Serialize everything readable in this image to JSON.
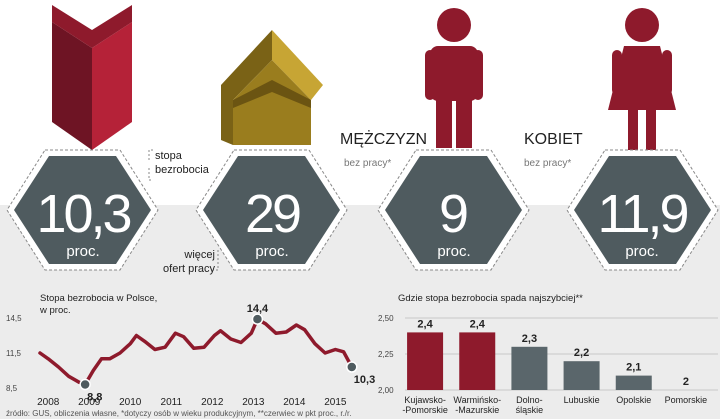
{
  "colors": {
    "maroon": "#8e1a2c",
    "maroon_light": "#b52238",
    "gold": "#9a7d1e",
    "gold_light": "#c7a534",
    "hex": "#4f5b5f",
    "bar_red": "#8e1a2c",
    "bar_gray": "#5a666b",
    "panel_bg": "#ececec"
  },
  "infographic": {
    "stat1": {
      "value": "10,3",
      "unit": "proc.",
      "note_line1": "stopa",
      "note_line2": "bezrobocia",
      "icon": "down-arrow-icon"
    },
    "stat2": {
      "value": "29",
      "unit": "proc.",
      "note_line1": "więcej",
      "note_line2": "ofert pracy",
      "icon": "up-arrow-icon"
    },
    "stat3": {
      "value": "9",
      "unit": "proc.",
      "heading": "MĘŻCZYZN",
      "note": "bez pracy*",
      "icon": "man-icon"
    },
    "stat4": {
      "value": "11,9",
      "unit": "proc.",
      "heading": "KOBIET",
      "note": "bez pracy*",
      "icon": "woman-icon"
    },
    "footnote": "źródło: GUS, obliczenia własne, *dotyczy osób w wieku produkcyjnym, **czerwiec w pkt proc., r./r."
  },
  "chart_data": [
    {
      "type": "line",
      "title": "Stopa bezrobocia w Polsce,",
      "subtitle": "w proc.",
      "x_ticks": [
        "2008",
        "2009",
        "2010",
        "2011",
        "2012",
        "2013",
        "2014",
        "2015"
      ],
      "y_ticks": [
        "14,5",
        "11,5",
        "8,5"
      ],
      "ylim": [
        8.5,
        14.5
      ],
      "xlim": [
        2007.8,
        2015.6
      ],
      "series": [
        {
          "values": [
            [
              2007.8,
              11.5
            ],
            [
              2008.0,
              11.0
            ],
            [
              2008.25,
              10.3
            ],
            [
              2008.5,
              9.5
            ],
            [
              2008.75,
              9.0
            ],
            [
              2008.9,
              8.8
            ],
            [
              2009.1,
              10.0
            ],
            [
              2009.3,
              11.0
            ],
            [
              2009.5,
              11.0
            ],
            [
              2009.75,
              11.5
            ],
            [
              2010.0,
              12.3
            ],
            [
              2010.15,
              13.0
            ],
            [
              2010.35,
              12.5
            ],
            [
              2010.6,
              11.8
            ],
            [
              2010.85,
              12.0
            ],
            [
              2011.1,
              13.2
            ],
            [
              2011.3,
              12.9
            ],
            [
              2011.55,
              11.9
            ],
            [
              2011.8,
              12.0
            ],
            [
              2012.05,
              13.0
            ],
            [
              2012.2,
              13.4
            ],
            [
              2012.45,
              12.7
            ],
            [
              2012.7,
              12.4
            ],
            [
              2012.95,
              13.2
            ],
            [
              2013.1,
              14.4
            ],
            [
              2013.3,
              14.0
            ],
            [
              2013.55,
              13.2
            ],
            [
              2013.8,
              13.3
            ],
            [
              2014.05,
              13.9
            ],
            [
              2014.25,
              13.5
            ],
            [
              2014.5,
              12.3
            ],
            [
              2014.75,
              11.5
            ],
            [
              2015.0,
              11.8
            ],
            [
              2015.2,
              11.6
            ],
            [
              2015.4,
              10.3
            ]
          ]
        }
      ],
      "annotations": [
        {
          "label": "8,8",
          "x": 2008.9,
          "y": 8.8
        },
        {
          "label": "14,4",
          "x": 2013.1,
          "y": 14.4
        },
        {
          "label": "10,3",
          "x": 2015.4,
          "y": 10.3
        }
      ],
      "grid": false
    },
    {
      "type": "bar",
      "title": "Gdzie stopa bezrobocia spada najszybciej**",
      "categories": [
        [
          "Kujawsko-",
          "-Pomorskie"
        ],
        [
          "Warmińsko-",
          "-Mazurskie"
        ],
        [
          "Dolno-",
          "śląskie"
        ],
        [
          "Lubuskie"
        ],
        [
          "Opolskie"
        ],
        [
          "Pomorskie"
        ]
      ],
      "values": [
        2.4,
        2.4,
        2.3,
        2.2,
        2.1,
        2.0
      ],
      "value_labels": [
        "2,4",
        "2,4",
        "2,3",
        "2,2",
        "2,1",
        "2"
      ],
      "colors": [
        "#8e1a2c",
        "#8e1a2c",
        "#5a666b",
        "#5a666b",
        "#5a666b",
        "#5a666b"
      ],
      "y_ticks": [
        "2,50",
        "2,25",
        "2,00"
      ],
      "ylim": [
        2.0,
        2.5
      ],
      "grid": true
    }
  ]
}
